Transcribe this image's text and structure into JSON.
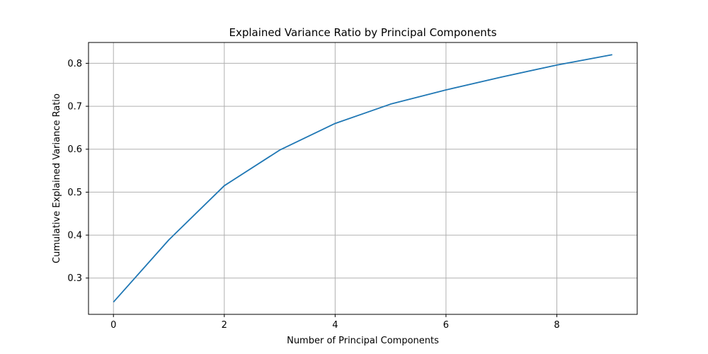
{
  "chart_data": {
    "type": "line",
    "title": "Explained Variance Ratio by Principal Components",
    "xlabel": "Number of Principal Components",
    "ylabel": "Cumulative Explained Variance Ratio",
    "xlim": [
      -0.45,
      9.45
    ],
    "ylim": [
      0.2155,
      0.8485
    ],
    "xticks": [
      0,
      2,
      4,
      6,
      8
    ],
    "yticks": [
      0.3,
      0.4,
      0.5,
      0.6,
      0.7,
      0.8
    ],
    "grid": true,
    "legend": "none",
    "series": [
      {
        "color": "#1f77b4",
        "x": [
          0,
          1,
          2,
          3,
          4,
          5,
          6,
          7,
          8,
          9
        ],
        "y": [
          0.244,
          0.389,
          0.515,
          0.598,
          0.66,
          0.705,
          0.738,
          0.768,
          0.796,
          0.82
        ]
      }
    ]
  }
}
